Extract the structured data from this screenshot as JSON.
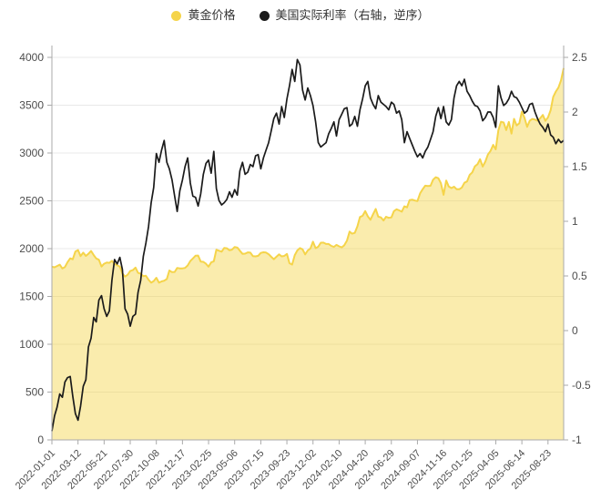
{
  "chart_data": {
    "type": "line",
    "title": "",
    "legend_position": "top",
    "grid": true,
    "n_points": 197,
    "x_tick_labels": [
      "2022-01-01",
      "2022-03-12",
      "2022-05-21",
      "2022-07-30",
      "2022-10-08",
      "2022-12-17",
      "2023-02-25",
      "2023-05-06",
      "2023-07-15",
      "2023-09-23",
      "2023-12-02",
      "2024-02-10",
      "2024-04-20",
      "2024-06-29",
      "2024-09-07",
      "2024-11-16",
      "2025-01-25",
      "2025-04-05",
      "2025-06-14",
      "2025-08-23"
    ],
    "x_tick_indices": [
      0,
      10,
      20,
      30,
      40,
      50,
      60,
      70,
      80,
      90,
      100,
      110,
      120,
      130,
      140,
      150,
      160,
      170,
      180,
      190
    ],
    "left_axis": {
      "min": 0,
      "max": 4000,
      "ticks": [
        0,
        500,
        1000,
        1500,
        2000,
        2500,
        3000,
        3500,
        4000
      ]
    },
    "right_axis": {
      "min": -1,
      "max": 2.5,
      "ticks": [
        2.5,
        2,
        1.5,
        1,
        0.5,
        0,
        -0.5,
        -1
      ]
    },
    "series": [
      {
        "name": "黄金价格",
        "axis": "left",
        "type": "area-line",
        "color": "#F5D44A",
        "fill": "rgba(245,212,74,0.45)",
        "values": [
          1810,
          1805,
          1818,
          1832,
          1792,
          1808,
          1859,
          1898,
          1889,
          1970,
          1985,
          1922,
          1958,
          1924,
          1946,
          1975,
          1932,
          1897,
          1884,
          1812,
          1842,
          1854,
          1851,
          1872,
          1840,
          1827,
          1811,
          1742,
          1708,
          1727,
          1766,
          1775,
          1802,
          1747,
          1738,
          1712,
          1716,
          1675,
          1644,
          1661,
          1695,
          1644,
          1657,
          1665,
          1682,
          1771,
          1754,
          1756,
          1798,
          1793,
          1793,
          1798,
          1824,
          1870,
          1897,
          1926,
          1928,
          1865,
          1862,
          1842,
          1811,
          1856,
          1868,
          1989,
          1978,
          1969,
          2007,
          2004,
          1983,
          1990,
          2017,
          2011,
          1978,
          1946,
          1948,
          1961,
          1958,
          1921,
          1919,
          1925,
          1955,
          1962,
          1959,
          1942,
          1914,
          1890,
          1915,
          1940,
          1919,
          1924,
          1945,
          1848,
          1833,
          1932,
          1981,
          2006,
          1992,
          1940,
          1981,
          2002,
          2072,
          2005,
          2020,
          2062,
          2063,
          2049,
          2049,
          2029,
          2018,
          2039,
          2024,
          2013,
          2035,
          2083,
          2178,
          2156,
          2165,
          2233,
          2330,
          2344,
          2392,
          2338,
          2302,
          2360,
          2415,
          2334,
          2327,
          2294,
          2333,
          2322,
          2327,
          2392,
          2411,
          2400,
          2387,
          2443,
          2431,
          2508,
          2512,
          2503,
          2497,
          2577,
          2622,
          2658,
          2654,
          2657,
          2721,
          2747,
          2736,
          2684,
          2563,
          2712,
          2650,
          2633,
          2648,
          2622,
          2621,
          2639,
          2689,
          2703,
          2771,
          2797,
          2861,
          2883,
          2935,
          2858,
          2910,
          2984,
          3022,
          3085,
          3038,
          3238,
          3327,
          3319,
          3240,
          3325,
          3203,
          3357,
          3289,
          3310,
          3432,
          3368,
          3273,
          3337,
          3356,
          3350,
          3337,
          3363,
          3398,
          3336,
          3372,
          3448,
          3587,
          3643,
          3685,
          3760,
          3887
        ]
      },
      {
        "name": "美国实际利率（右轴，逆序）",
        "axis": "right",
        "type": "line",
        "color": "#1b1b1b",
        "values": [
          -0.92,
          -0.78,
          -0.7,
          -0.58,
          -0.61,
          -0.47,
          -0.43,
          -0.42,
          -0.6,
          -0.76,
          -0.82,
          -0.69,
          -0.51,
          -0.45,
          -0.15,
          -0.07,
          0.12,
          0.08,
          0.28,
          0.32,
          0.2,
          0.13,
          0.18,
          0.46,
          0.65,
          0.61,
          0.67,
          0.56,
          0.2,
          0.15,
          0.04,
          0.13,
          0.15,
          0.35,
          0.46,
          0.68,
          0.8,
          0.95,
          1.17,
          1.31,
          1.62,
          1.54,
          1.65,
          1.74,
          1.54,
          1.48,
          1.38,
          1.23,
          1.09,
          1.28,
          1.38,
          1.5,
          1.58,
          1.35,
          1.23,
          1.22,
          1.14,
          1.25,
          1.43,
          1.53,
          1.56,
          1.44,
          1.64,
          1.3,
          1.19,
          1.15,
          1.17,
          1.2,
          1.27,
          1.22,
          1.29,
          1.24,
          1.46,
          1.54,
          1.43,
          1.45,
          1.52,
          1.5,
          1.6,
          1.61,
          1.48,
          1.58,
          1.65,
          1.72,
          1.83,
          1.94,
          1.99,
          1.89,
          2.05,
          1.95,
          2.12,
          2.24,
          2.39,
          2.28,
          2.48,
          2.43,
          2.2,
          2.11,
          2.22,
          2.15,
          2.06,
          1.91,
          1.72,
          1.68,
          1.7,
          1.72,
          1.8,
          1.85,
          1.91,
          1.78,
          1.93,
          1.98,
          2.03,
          2.04,
          1.87,
          1.89,
          1.96,
          1.87,
          2.02,
          2.12,
          2.24,
          2.28,
          2.13,
          2.07,
          2.03,
          2.15,
          2.09,
          2.07,
          2.05,
          2.02,
          2.09,
          2.07,
          1.99,
          2.01,
          1.93,
          1.72,
          1.82,
          1.76,
          1.7,
          1.64,
          1.59,
          1.62,
          1.58,
          1.64,
          1.68,
          1.75,
          1.82,
          1.96,
          2.04,
          1.94,
          2.05,
          1.91,
          1.88,
          1.93,
          2.13,
          2.24,
          2.28,
          2.24,
          2.3,
          2.19,
          2.15,
          2.1,
          2.06,
          2.05,
          2.01,
          1.92,
          1.95,
          2.0,
          2.0,
          1.95,
          1.86,
          2.24,
          2.13,
          2.06,
          2.08,
          2.12,
          2.19,
          2.14,
          2.13,
          2.09,
          2.04,
          1.99,
          2.01,
          2.07,
          2.08,
          2.0,
          1.94,
          1.89,
          1.86,
          1.82,
          1.89,
          1.79,
          1.77,
          1.71,
          1.75,
          1.72,
          1.74
        ]
      }
    ]
  },
  "colors": {
    "grid_line": "#e8e8e8",
    "axis_line": "#aaaaaa",
    "tick_label": "#4d4d4d",
    "legend_text": "#333333",
    "background": "#ffffff"
  }
}
